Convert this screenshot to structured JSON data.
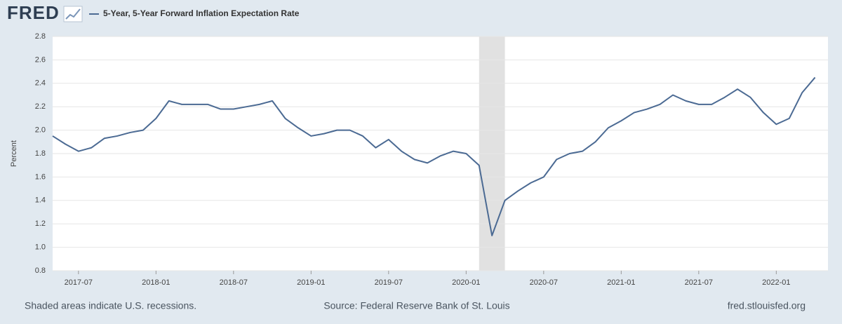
{
  "chart_data": {
    "type": "line",
    "logo": "FRED",
    "ylabel": "Percent",
    "note": "Shaded areas indicate U.S. recessions.",
    "source": "Source: Federal Reserve Bank of St. Louis",
    "site": "fred.stlouisfed.org",
    "recessions": [
      [
        "2020-02",
        "2020-04"
      ]
    ],
    "x": [
      "2017-05",
      "2017-06",
      "2017-07",
      "2017-08",
      "2017-09",
      "2017-10",
      "2017-11",
      "2017-12",
      "2018-01",
      "2018-02",
      "2018-03",
      "2018-04",
      "2018-05",
      "2018-06",
      "2018-07",
      "2018-08",
      "2018-09",
      "2018-10",
      "2018-11",
      "2018-12",
      "2019-01",
      "2019-02",
      "2019-03",
      "2019-04",
      "2019-05",
      "2019-06",
      "2019-07",
      "2019-08",
      "2019-09",
      "2019-10",
      "2019-11",
      "2019-12",
      "2020-01",
      "2020-02",
      "2020-03",
      "2020-04",
      "2020-05",
      "2020-06",
      "2020-07",
      "2020-08",
      "2020-09",
      "2020-10",
      "2020-11",
      "2020-12",
      "2021-01",
      "2021-02",
      "2021-03",
      "2021-04",
      "2021-05",
      "2021-06",
      "2021-07",
      "2021-08",
      "2021-09",
      "2021-10",
      "2021-11",
      "2021-12",
      "2022-01",
      "2022-02",
      "2022-03",
      "2022-04"
    ],
    "series": [
      {
        "name": "5-Year, 5-Year Forward Inflation Expectation Rate",
        "color": "#4b6a93",
        "values": [
          1.95,
          1.88,
          1.82,
          1.85,
          1.93,
          1.95,
          1.98,
          2.0,
          2.1,
          2.25,
          2.22,
          2.22,
          2.22,
          2.18,
          2.18,
          2.2,
          2.22,
          2.25,
          2.1,
          2.02,
          1.95,
          1.97,
          2.0,
          2.0,
          1.95,
          1.85,
          1.92,
          1.82,
          1.75,
          1.72,
          1.78,
          1.82,
          1.8,
          1.7,
          1.1,
          1.4,
          1.48,
          1.55,
          1.6,
          1.75,
          1.8,
          1.82,
          1.9,
          2.02,
          2.08,
          2.15,
          2.18,
          2.22,
          2.3,
          2.25,
          2.22,
          2.22,
          2.28,
          2.35,
          2.28,
          2.15,
          2.05,
          2.1,
          2.32,
          2.45
        ]
      }
    ],
    "xlim": [
      "2017-05",
      "2022-05"
    ],
    "xticks": [
      "2017-07",
      "2018-01",
      "2018-07",
      "2019-01",
      "2019-07",
      "2020-01",
      "2020-07",
      "2021-01",
      "2021-07",
      "2022-01"
    ],
    "ylim": [
      0.8,
      2.8
    ],
    "yticks": [
      0.8,
      {
        "value": 1.0,
        "label": "1.0"
      },
      1.2,
      1.4,
      1.6,
      1.8,
      {
        "value": 2.0,
        "label": "2.0"
      },
      2.2,
      2.4,
      2.6,
      2.8
    ],
    "grid": true
  }
}
